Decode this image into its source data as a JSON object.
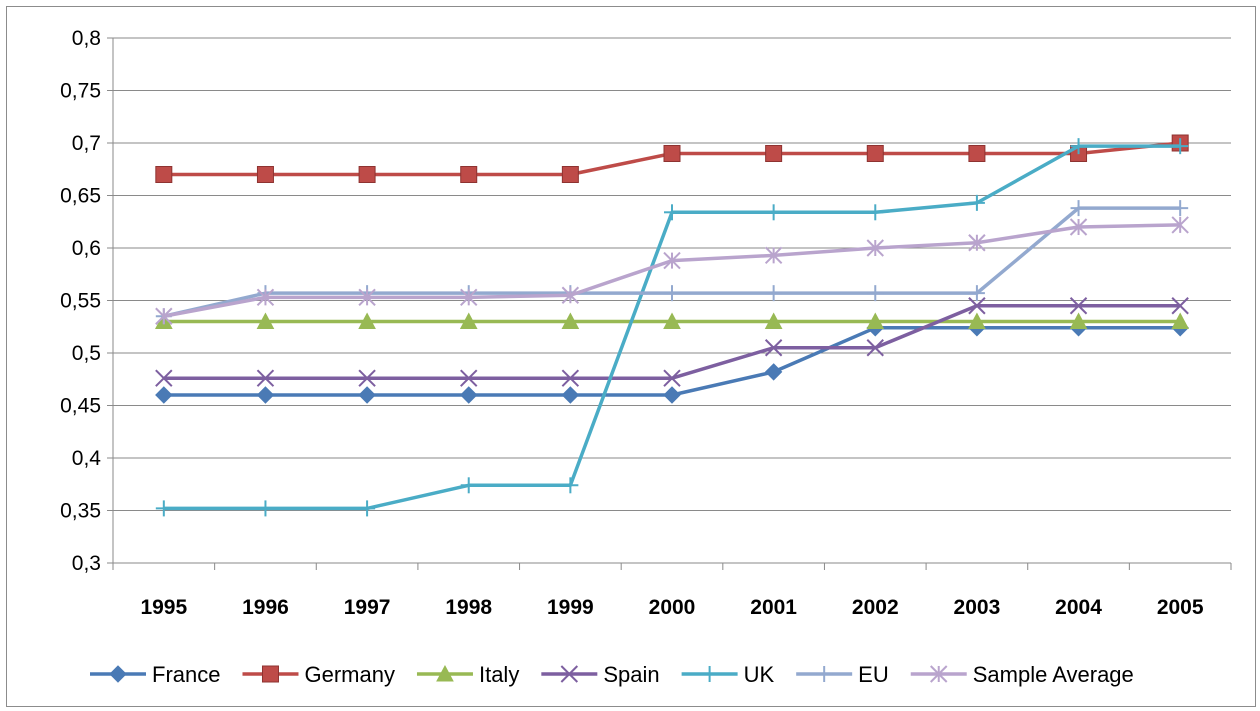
{
  "chart_data": {
    "type": "line",
    "categories": [
      "1995",
      "1996",
      "1997",
      "1998",
      "1999",
      "2000",
      "2001",
      "2002",
      "2003",
      "2004",
      "2005"
    ],
    "ylim": [
      0.3,
      0.8
    ],
    "ytick_labels": [
      "0,3",
      "0,35",
      "0,4",
      "0,45",
      "0,5",
      "0,55",
      "0,6",
      "0,65",
      "0,7",
      "0,75",
      "0,8"
    ],
    "grid": true,
    "legend_position": "bottom",
    "series": [
      {
        "name": "France",
        "color": "#4a7ab5",
        "marker": "diamond",
        "values": [
          0.46,
          0.46,
          0.46,
          0.46,
          0.46,
          0.46,
          0.482,
          0.524,
          0.524,
          0.524,
          0.524
        ]
      },
      {
        "name": "Germany",
        "color": "#be4b48",
        "marker": "square",
        "values": [
          0.67,
          0.67,
          0.67,
          0.67,
          0.67,
          0.69,
          0.69,
          0.69,
          0.69,
          0.69,
          0.7
        ]
      },
      {
        "name": "Italy",
        "color": "#98b954",
        "marker": "triangle",
        "values": [
          0.53,
          0.53,
          0.53,
          0.53,
          0.53,
          0.53,
          0.53,
          0.53,
          0.53,
          0.53,
          0.53
        ]
      },
      {
        "name": "Spain",
        "color": "#7d5fa0",
        "marker": "x",
        "values": [
          0.476,
          0.476,
          0.476,
          0.476,
          0.476,
          0.476,
          0.505,
          0.505,
          0.545,
          0.545,
          0.545
        ]
      },
      {
        "name": "UK",
        "color": "#4aacc6",
        "marker": "plus",
        "values": [
          0.352,
          0.352,
          0.352,
          0.374,
          0.374,
          0.634,
          0.634,
          0.634,
          0.643,
          0.697,
          0.697
        ]
      },
      {
        "name": "EU",
        "color": "#93a9cf",
        "marker": "plus",
        "values": [
          0.535,
          0.557,
          0.557,
          0.557,
          0.557,
          0.557,
          0.557,
          0.557,
          0.557,
          0.638,
          0.638
        ]
      },
      {
        "name": "Sample Average",
        "color": "#b9a4cd",
        "marker": "asterisk",
        "values": [
          0.535,
          0.553,
          0.553,
          0.553,
          0.555,
          0.588,
          0.593,
          0.6,
          0.605,
          0.62,
          0.622
        ]
      }
    ]
  }
}
